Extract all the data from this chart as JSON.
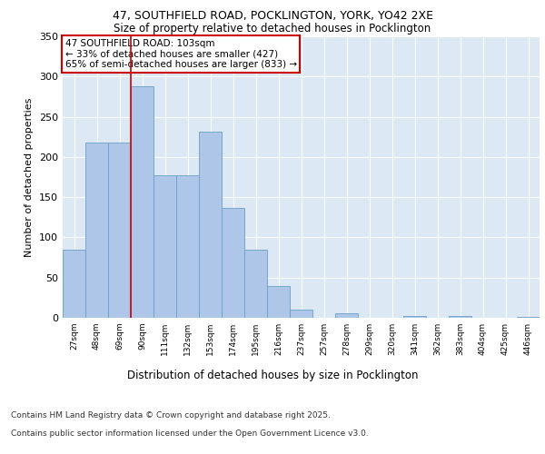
{
  "title_line1": "47, SOUTHFIELD ROAD, POCKLINGTON, YORK, YO42 2XE",
  "title_line2": "Size of property relative to detached houses in Pocklington",
  "xlabel": "Distribution of detached houses by size in Pocklington",
  "ylabel": "Number of detached properties",
  "categories": [
    "27sqm",
    "48sqm",
    "69sqm",
    "90sqm",
    "111sqm",
    "132sqm",
    "153sqm",
    "174sqm",
    "195sqm",
    "216sqm",
    "237sqm",
    "257sqm",
    "278sqm",
    "299sqm",
    "320sqm",
    "341sqm",
    "362sqm",
    "383sqm",
    "404sqm",
    "425sqm",
    "446sqm"
  ],
  "values": [
    85,
    218,
    218,
    288,
    177,
    177,
    232,
    137,
    85,
    40,
    10,
    0,
    6,
    0,
    0,
    2,
    0,
    2,
    0,
    0,
    1
  ],
  "bar_color": "#aec6e8",
  "bar_edge_color": "#6b9fc8",
  "plot_bg_color": "#dce9f5",
  "grid_color": "#ffffff",
  "vline_color": "#cc0000",
  "vline_x_index": 3,
  "annotation_text": "47 SOUTHFIELD ROAD: 103sqm\n← 33% of detached houses are smaller (427)\n65% of semi-detached houses are larger (833) →",
  "annotation_box_color": "#ffffff",
  "annotation_box_edge": "#cc0000",
  "ylim": [
    0,
    350
  ],
  "yticks": [
    0,
    50,
    100,
    150,
    200,
    250,
    300,
    350
  ],
  "footer_line1": "Contains HM Land Registry data © Crown copyright and database right 2025.",
  "footer_line2": "Contains public sector information licensed under the Open Government Licence v3.0."
}
